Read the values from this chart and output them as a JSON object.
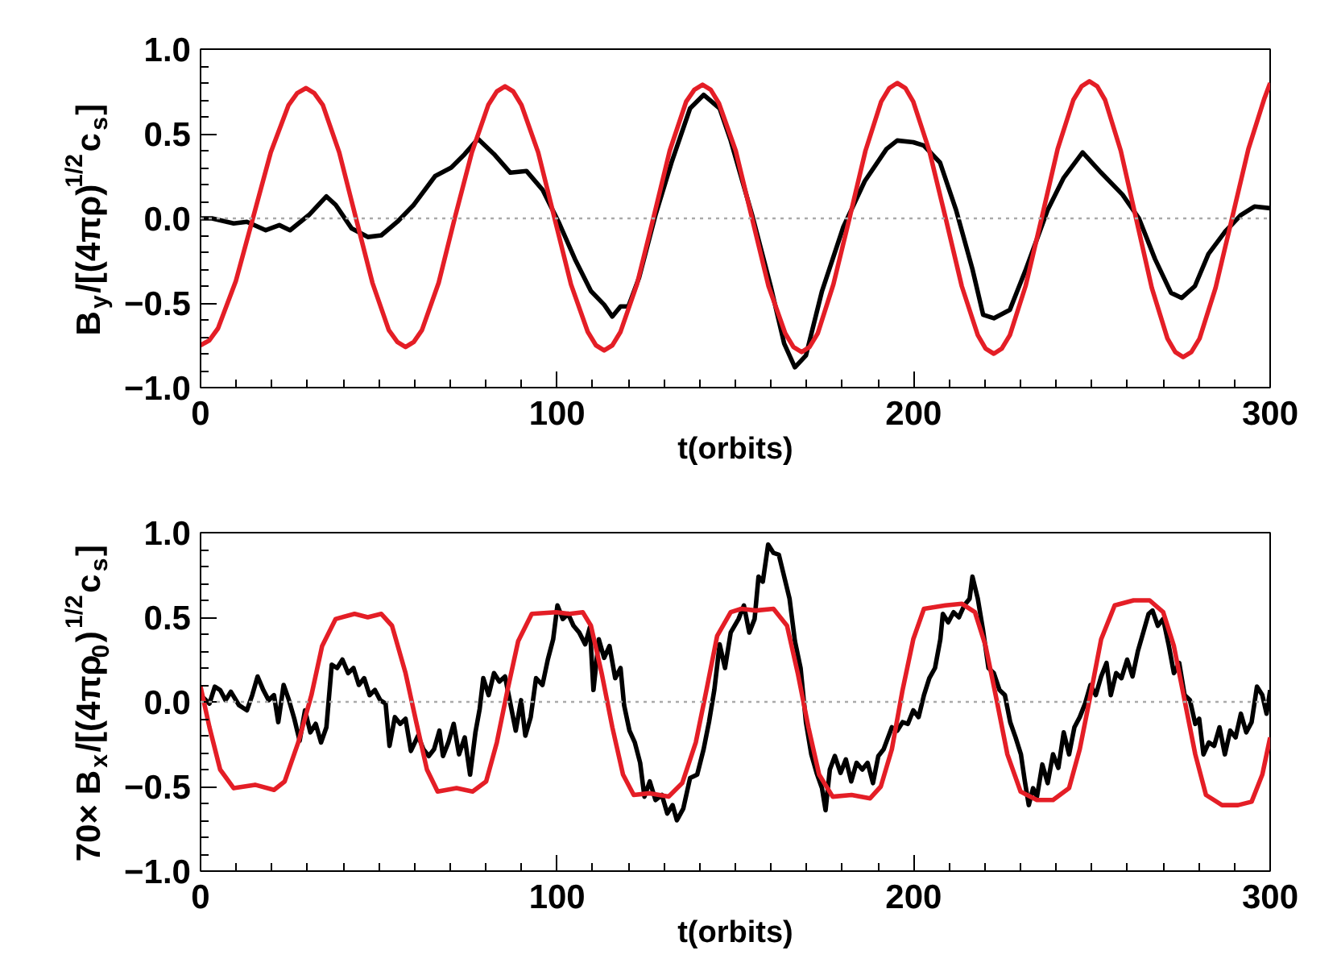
{
  "chart_data": [
    {
      "type": "line",
      "xlabel": "t(orbits)",
      "ylabel": "B$_{y}$/[(4πρ)$^{1/2}$c$_{s}$]",
      "xlim": [
        0,
        300
      ],
      "ylim": [
        -1,
        1
      ],
      "xticks": [
        0,
        {
          "value": 10,
          "label": null
        },
        {
          "value": 20,
          "label": null
        },
        {
          "value": 30,
          "label": null
        },
        {
          "value": 40,
          "label": null
        },
        {
          "value": 50,
          "label": null
        },
        {
          "value": 60,
          "label": null
        },
        {
          "value": 70,
          "label": null
        },
        {
          "value": 80,
          "label": null
        },
        {
          "value": 90,
          "label": null
        },
        100,
        {
          "value": 110,
          "label": null
        },
        {
          "value": 120,
          "label": null
        },
        {
          "value": 130,
          "label": null
        },
        {
          "value": 140,
          "label": null
        },
        {
          "value": 150,
          "label": null
        },
        {
          "value": 160,
          "label": null
        },
        {
          "value": 170,
          "label": null
        },
        {
          "value": 180,
          "label": null
        },
        {
          "value": 190,
          "label": null
        },
        200,
        {
          "value": 210,
          "label": null
        },
        {
          "value": 220,
          "label": null
        },
        {
          "value": 230,
          "label": null
        },
        {
          "value": 240,
          "label": null
        },
        {
          "value": 250,
          "label": null
        },
        {
          "value": 260,
          "label": null
        },
        {
          "value": 270,
          "label": null
        },
        {
          "value": 280,
          "label": null
        },
        {
          "value": 290,
          "label": null
        },
        300
      ],
      "yticks": [
        {
          "value": -1,
          "label": "−1.0"
        },
        {
          "value": -0.9,
          "label": null
        },
        {
          "value": -0.8,
          "label": null
        },
        {
          "value": -0.7,
          "label": null
        },
        {
          "value": -0.6,
          "label": null
        },
        {
          "value": -0.5,
          "label": "−0.5"
        },
        {
          "value": -0.4,
          "label": null
        },
        {
          "value": -0.3,
          "label": null
        },
        {
          "value": -0.2,
          "label": null
        },
        {
          "value": -0.1,
          "label": null
        },
        {
          "value": 0,
          "label": "0.0"
        },
        {
          "value": 0.1,
          "label": null
        },
        {
          "value": 0.2,
          "label": null
        },
        {
          "value": 0.3,
          "label": null
        },
        {
          "value": 0.4,
          "label": null
        },
        0.5,
        {
          "value": 0.6,
          "label": null
        },
        {
          "value": 0.7,
          "label": null
        },
        {
          "value": 0.8,
          "label": null
        },
        {
          "value": 0.9,
          "label": null
        },
        {
          "value": 1,
          "label": "1.0"
        }
      ],
      "ref_lines": [
        {
          "axis": "y",
          "value": 0,
          "color": "#aaaaaa",
          "line_style": "dotted"
        }
      ],
      "line_style": "solid",
      "series": [
        {
          "color": "#000000",
          "x": [
            0,
            3.2,
            9.3,
            13,
            18.3,
            22.1,
            25.1,
            30.4,
            35.3,
            37.9,
            42.4,
            46.9,
            50.7,
            55.2,
            59.8,
            65.8,
            70.3,
            74.1,
            77.8,
            82.3,
            86.9,
            91.4,
            95.9,
            100.4,
            105,
            109.5,
            113.2,
            115.5,
            117.8,
            120,
            123,
            127.6,
            132.1,
            137.3,
            141.1,
            145.6,
            148.7,
            154.7,
            159.9,
            163.7,
            166.7,
            169.8,
            174.3,
            180.3,
            186.3,
            192.4,
            195.4,
            199.9,
            202.9,
            207.4,
            211.9,
            216.5,
            219.5,
            222.5,
            227,
            231.5,
            237.6,
            242.1,
            247.4,
            252.6,
            258.6,
            263.2,
            267.7,
            272.2,
            275.2,
            278.9,
            282.7,
            287.3,
            291.8,
            295.6,
            300
          ],
          "values": [
            0,
            0,
            -0.03,
            -0.02,
            -0.07,
            -0.04,
            -0.07,
            0.02,
            0.13,
            0.08,
            -0.06,
            -0.11,
            -0.1,
            -0.02,
            0.08,
            0.25,
            0.3,
            0.38,
            0.47,
            0.38,
            0.27,
            0.28,
            0.17,
            -0.02,
            -0.24,
            -0.43,
            -0.51,
            -0.58,
            -0.52,
            -0.52,
            -0.35,
            0.02,
            0.33,
            0.65,
            0.73,
            0.65,
            0.46,
            0.02,
            -0.4,
            -0.74,
            -0.88,
            -0.81,
            -0.43,
            -0.05,
            0.22,
            0.41,
            0.46,
            0.45,
            0.43,
            0.33,
            0.05,
            -0.3,
            -0.57,
            -0.59,
            -0.54,
            -0.3,
            0.05,
            0.24,
            0.39,
            0.27,
            0.14,
            0,
            -0.24,
            -0.44,
            -0.47,
            -0.4,
            -0.21,
            -0.08,
            0.02,
            0.07,
            0.06
          ]
        },
        {
          "color": "#e41e26",
          "x": [
            0,
            2.5,
            4.9,
            9.9,
            14.8,
            19.7,
            24.7,
            27.1,
            29.6,
            31.9,
            34.3,
            38.9,
            43.6,
            48.2,
            52.8,
            55.2,
            57.5,
            59.8,
            62.1,
            66.8,
            71.4,
            76.1,
            80.7,
            83.1,
            85.4,
            87.7,
            90,
            94.7,
            99.3,
            103.9,
            108.6,
            110.9,
            113.2,
            115.5,
            117.8,
            122.4,
            127,
            131.6,
            136.2,
            138.5,
            140.8,
            143.1,
            145.4,
            150.1,
            154.7,
            159.3,
            164,
            166.3,
            168.6,
            170.8,
            173.1,
            177.5,
            182,
            186.5,
            190.9,
            193.2,
            195.4,
            197.7,
            199.9,
            204.4,
            209,
            213.5,
            218,
            220.2,
            222.5,
            224.7,
            227,
            231.4,
            235.9,
            240.4,
            244.8,
            247.1,
            249.3,
            251.5,
            253.7,
            258.1,
            262.5,
            266.8,
            271.2,
            273.4,
            275.6,
            277.9,
            280.2,
            284.7,
            289.3,
            293.9,
            298.4,
            300
          ],
          "values": [
            -0.75,
            -0.72,
            -0.65,
            -0.37,
            0.01,
            0.39,
            0.67,
            0.74,
            0.77,
            0.74,
            0.67,
            0.39,
            0,
            -0.38,
            -0.66,
            -0.73,
            -0.76,
            -0.73,
            -0.66,
            -0.38,
            0.01,
            0.39,
            0.67,
            0.75,
            0.78,
            0.75,
            0.67,
            0.39,
            0,
            -0.39,
            -0.67,
            -0.75,
            -0.78,
            -0.75,
            -0.67,
            -0.39,
            0,
            0.4,
            0.69,
            0.76,
            0.79,
            0.76,
            0.68,
            0.4,
            0,
            -0.4,
            -0.68,
            -0.76,
            -0.79,
            -0.76,
            -0.68,
            -0.39,
            0,
            0.4,
            0.69,
            0.77,
            0.8,
            0.77,
            0.69,
            0.4,
            0,
            -0.4,
            -0.69,
            -0.77,
            -0.8,
            -0.77,
            -0.69,
            -0.4,
            0,
            0.41,
            0.7,
            0.78,
            0.81,
            0.78,
            0.7,
            0.4,
            -0.01,
            -0.41,
            -0.71,
            -0.79,
            -0.82,
            -0.79,
            -0.71,
            -0.41,
            0,
            0.41,
            0.71,
            0.8
          ]
        }
      ]
    },
    {
      "type": "line",
      "xlabel": "t(orbits)",
      "ylabel": "70× B$_{x}$/[(4πρ$_{0}$)$^{1/2}$c$_{s}$]",
      "xlim": [
        0,
        300
      ],
      "ylim": [
        -1,
        1
      ],
      "xticks": [
        0,
        {
          "value": 10,
          "label": null
        },
        {
          "value": 20,
          "label": null
        },
        {
          "value": 30,
          "label": null
        },
        {
          "value": 40,
          "label": null
        },
        {
          "value": 50,
          "label": null
        },
        {
          "value": 60,
          "label": null
        },
        {
          "value": 70,
          "label": null
        },
        {
          "value": 80,
          "label": null
        },
        {
          "value": 90,
          "label": null
        },
        100,
        {
          "value": 110,
          "label": null
        },
        {
          "value": 120,
          "label": null
        },
        {
          "value": 130,
          "label": null
        },
        {
          "value": 140,
          "label": null
        },
        {
          "value": 150,
          "label": null
        },
        {
          "value": 160,
          "label": null
        },
        {
          "value": 170,
          "label": null
        },
        {
          "value": 180,
          "label": null
        },
        {
          "value": 190,
          "label": null
        },
        200,
        {
          "value": 210,
          "label": null
        },
        {
          "value": 220,
          "label": null
        },
        {
          "value": 230,
          "label": null
        },
        {
          "value": 240,
          "label": null
        },
        {
          "value": 250,
          "label": null
        },
        {
          "value": 260,
          "label": null
        },
        {
          "value": 270,
          "label": null
        },
        {
          "value": 280,
          "label": null
        },
        {
          "value": 290,
          "label": null
        },
        300
      ],
      "yticks": [
        {
          "value": -1,
          "label": "−1.0"
        },
        {
          "value": -0.9,
          "label": null
        },
        {
          "value": -0.8,
          "label": null
        },
        {
          "value": -0.7,
          "label": null
        },
        {
          "value": -0.6,
          "label": null
        },
        {
          "value": -0.5,
          "label": "−0.5"
        },
        {
          "value": -0.4,
          "label": null
        },
        {
          "value": -0.3,
          "label": null
        },
        {
          "value": -0.2,
          "label": null
        },
        {
          "value": -0.1,
          "label": null
        },
        {
          "value": 0,
          "label": "0.0"
        },
        {
          "value": 0.1,
          "label": null
        },
        {
          "value": 0.2,
          "label": null
        },
        {
          "value": 0.3,
          "label": null
        },
        {
          "value": 0.4,
          "label": null
        },
        0.5,
        {
          "value": 0.6,
          "label": null
        },
        {
          "value": 0.7,
          "label": null
        },
        {
          "value": 0.8,
          "label": null
        },
        {
          "value": 0.9,
          "label": null
        },
        {
          "value": 1,
          "label": "1.0"
        }
      ],
      "ref_lines": [
        {
          "axis": "y",
          "value": 0,
          "color": "#aaaaaa",
          "line_style": "dotted"
        }
      ],
      "line_style": "solid",
      "series": [
        {
          "color": "#000000",
          "x": [
            0,
            2.5,
            4,
            5.5,
            7,
            8.5,
            10.8,
            13,
            14.5,
            16,
            17.6,
            19.1,
            20.6,
            21.8,
            23.3,
            24.8,
            26.3,
            27.8,
            29.3,
            30.8,
            32.3,
            33.8,
            35.3,
            36.8,
            38.3,
            39.8,
            41.4,
            42.9,
            44.4,
            45.9,
            47.4,
            48.9,
            50.4,
            51.9,
            53,
            54.5,
            56,
            57.5,
            59,
            61,
            62.5,
            64,
            65.5,
            67,
            68,
            69.5,
            71,
            72.5,
            74.1,
            75.6,
            77.1,
            78.3,
            79.3,
            80.8,
            82.3,
            83.8,
            85.4,
            86.9,
            88.4,
            89.9,
            91.1,
            92.6,
            94.1,
            95.9,
            97.4,
            98.9,
            100.1,
            101.6,
            103.1,
            104.6,
            106.2,
            107.9,
            109.2,
            110.2,
            111.7,
            113.2,
            114.7,
            116.3,
            117.8,
            118.8,
            120.3,
            121.8,
            123.3,
            124.5,
            126,
            127.6,
            129.4,
            130.9,
            132.4,
            133.6,
            135.4,
            137.3,
            139.3,
            141.1,
            142.6,
            144.1,
            145.6,
            147.1,
            148.7,
            150.9,
            152.4,
            153.9,
            155.4,
            156.5,
            157.7,
            159.2,
            160.7,
            162.2,
            163.7,
            165.2,
            166.7,
            168.3,
            169.8,
            171.3,
            172.8,
            174.3,
            175.3,
            176.5,
            177.9,
            179.5,
            181,
            182.5,
            184,
            185.6,
            187.1,
            188.6,
            190.1,
            191.6,
            193.9,
            195.4,
            196.9,
            198.4,
            199.9,
            201.4,
            202.9,
            204.4,
            206,
            207.5,
            208.2,
            209.7,
            211.2,
            212.7,
            214.2,
            215.7,
            216.5,
            218,
            219.5,
            221,
            222.5,
            224.1,
            225.6,
            227.1,
            228.6,
            230.1,
            231.2,
            232.3,
            233.5,
            234.6,
            236.1,
            237.6,
            239.1,
            240.6,
            242.1,
            243.6,
            245.1,
            246.6,
            248.1,
            249.6,
            251.1,
            252.6,
            254.1,
            255.3,
            256.8,
            258.3,
            259.9,
            261.4,
            262.9,
            264.4,
            265.9,
            267,
            268.5,
            270,
            271.5,
            273,
            274.5,
            276,
            277.5,
            279,
            280.1,
            281.3,
            282.8,
            284.3,
            285.8,
            287.3,
            288.8,
            290.3,
            291.8,
            293.3,
            294.8,
            296.3,
            297.8,
            299,
            300
          ],
          "values": [
            0.04,
            -0.01,
            0.09,
            0.07,
            0.01,
            0.06,
            -0.02,
            -0.05,
            0.04,
            0.15,
            0.07,
            0.01,
            0.04,
            -0.12,
            0.1,
            0.01,
            -0.1,
            -0.23,
            -0.05,
            -0.18,
            -0.13,
            -0.24,
            -0.15,
            0.22,
            0.2,
            0.25,
            0.17,
            0.2,
            0.1,
            0.14,
            0.04,
            0.07,
            0.01,
            -0.01,
            -0.26,
            -0.09,
            -0.13,
            -0.1,
            -0.29,
            -0.2,
            -0.28,
            -0.32,
            -0.28,
            -0.17,
            -0.32,
            -0.24,
            -0.13,
            -0.31,
            -0.21,
            -0.43,
            -0.18,
            -0.04,
            0.14,
            0.04,
            0.17,
            0.12,
            0.15,
            -0.01,
            -0.17,
            0.01,
            -0.2,
            -0.09,
            0.14,
            0.1,
            0.25,
            0.37,
            0.57,
            0.49,
            0.52,
            0.45,
            0.41,
            0.34,
            0.44,
            0.07,
            0.37,
            0.26,
            0.33,
            0.14,
            0.2,
            -0.02,
            -0.17,
            -0.24,
            -0.36,
            -0.56,
            -0.47,
            -0.58,
            -0.55,
            -0.66,
            -0.61,
            -0.7,
            -0.63,
            -0.45,
            -0.43,
            -0.28,
            -0.12,
            0.07,
            0.34,
            0.2,
            0.41,
            0.49,
            0.57,
            0.41,
            0.49,
            0.74,
            0.71,
            0.93,
            0.88,
            0.87,
            0.74,
            0.61,
            0.36,
            0.2,
            -0.12,
            -0.31,
            -0.42,
            -0.51,
            -0.64,
            -0.4,
            -0.32,
            -0.42,
            -0.34,
            -0.47,
            -0.36,
            -0.4,
            -0.36,
            -0.48,
            -0.32,
            -0.28,
            -0.15,
            -0.17,
            -0.12,
            -0.13,
            -0.05,
            -0.09,
            0.04,
            0.14,
            0.2,
            0.37,
            0.52,
            0.47,
            0.53,
            0.5,
            0.57,
            0.61,
            0.74,
            0.61,
            0.42,
            0.2,
            0.17,
            0.07,
            0.04,
            -0.12,
            -0.21,
            -0.31,
            -0.47,
            -0.61,
            -0.51,
            -0.56,
            -0.37,
            -0.48,
            -0.31,
            -0.39,
            -0.18,
            -0.31,
            -0.15,
            -0.09,
            -0.01,
            0.1,
            0.04,
            0.15,
            0.23,
            0.04,
            0.17,
            0.14,
            0.25,
            0.15,
            0.3,
            0.41,
            0.52,
            0.54,
            0.45,
            0.49,
            0.34,
            0.17,
            0.23,
            0.04,
            0.01,
            -0.13,
            -0.1,
            -0.31,
            -0.24,
            -0.26,
            -0.15,
            -0.31,
            -0.17,
            -0.21,
            -0.07,
            -0.18,
            -0.12,
            0.09,
            0.04,
            -0.07,
            0.07
          ]
        },
        {
          "color": "#e41e26",
          "x": [
            0,
            2.5,
            5.5,
            9.3,
            15.3,
            20.6,
            23.6,
            27.4,
            31.1,
            34.1,
            37.9,
            43.2,
            46.9,
            50.7,
            53.7,
            57.5,
            60.5,
            63.5,
            66.5,
            71.8,
            76.3,
            80.1,
            83.1,
            86.1,
            89.1,
            92.9,
            99.7,
            103.5,
            107.2,
            109.5,
            112.5,
            115.5,
            118.5,
            121.5,
            126,
            131.3,
            135.1,
            138.9,
            141.9,
            144.9,
            148.7,
            151.7,
            155.7,
            160.7,
            164.5,
            167.5,
            170.5,
            173.5,
            177.3,
            182.6,
            187.8,
            190.8,
            193.9,
            196.9,
            199.9,
            202.9,
            208.9,
            213.5,
            217.2,
            220.2,
            223.3,
            226.3,
            230,
            234.6,
            239.1,
            243.6,
            246.6,
            249.6,
            252.6,
            256.4,
            261.7,
            266.2,
            270,
            273,
            276,
            279,
            282,
            286.5,
            291,
            294.8,
            297.8,
            300
          ],
          "values": [
            0.09,
            -0.15,
            -0.4,
            -0.51,
            -0.49,
            -0.52,
            -0.47,
            -0.24,
            0.04,
            0.33,
            0.49,
            0.52,
            0.5,
            0.52,
            0.45,
            0.17,
            -0.12,
            -0.4,
            -0.53,
            -0.51,
            -0.53,
            -0.47,
            -0.24,
            0.07,
            0.36,
            0.52,
            0.53,
            0.52,
            0.53,
            0.45,
            0.17,
            -0.15,
            -0.43,
            -0.55,
            -0.54,
            -0.56,
            -0.48,
            -0.24,
            0.07,
            0.39,
            0.53,
            0.55,
            0.54,
            0.55,
            0.45,
            0.17,
            -0.15,
            -0.43,
            -0.56,
            -0.55,
            -0.57,
            -0.5,
            -0.28,
            0.07,
            0.37,
            0.55,
            0.57,
            0.58,
            0.53,
            0.33,
            0.01,
            -0.31,
            -0.53,
            -0.58,
            -0.58,
            -0.51,
            -0.28,
            0.04,
            0.37,
            0.57,
            0.6,
            0.6,
            0.53,
            0.33,
            0.01,
            -0.31,
            -0.55,
            -0.61,
            -0.61,
            -0.59,
            -0.43,
            -0.21
          ]
        }
      ]
    }
  ]
}
